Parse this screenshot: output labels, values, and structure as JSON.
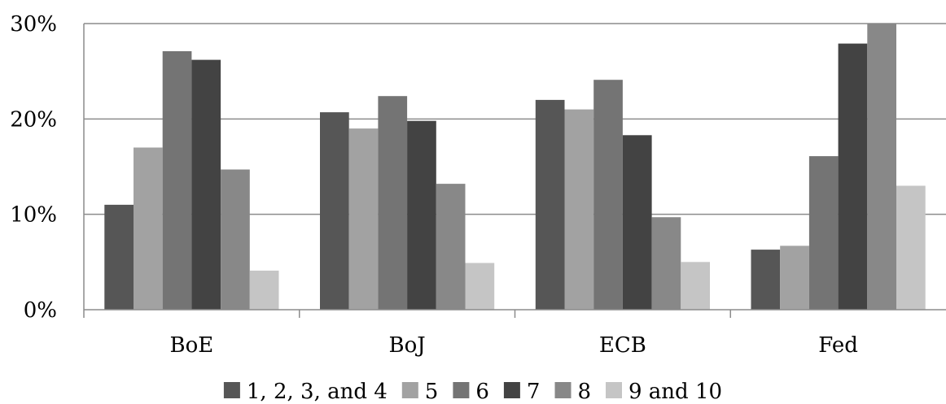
{
  "chart_data": {
    "type": "bar",
    "categories": [
      "BoE",
      "BoJ",
      "ECB",
      "Fed"
    ],
    "series": [
      {
        "name": "1, 2, 3, and 4",
        "color": "#565656",
        "values": [
          11.0,
          20.7,
          22.0,
          6.3
        ]
      },
      {
        "name": "5",
        "color": "#a2a2a2",
        "values": [
          17.0,
          19.0,
          21.0,
          6.7
        ]
      },
      {
        "name": "6",
        "color": "#747474",
        "values": [
          27.1,
          22.4,
          24.1,
          16.1
        ]
      },
      {
        "name": "7",
        "color": "#434343",
        "values": [
          26.2,
          19.8,
          18.3,
          27.9
        ]
      },
      {
        "name": "8",
        "color": "#888888",
        "values": [
          14.7,
          13.2,
          9.7,
          30.0
        ]
      },
      {
        "name": "9 and 10",
        "color": "#c5c5c5",
        "values": [
          4.1,
          4.9,
          5.0,
          13.0
        ]
      }
    ],
    "ylim": [
      0,
      30
    ],
    "yticks": [
      "0%",
      "10%",
      "20%",
      "30%"
    ],
    "grid": true,
    "legend": "bottom"
  }
}
